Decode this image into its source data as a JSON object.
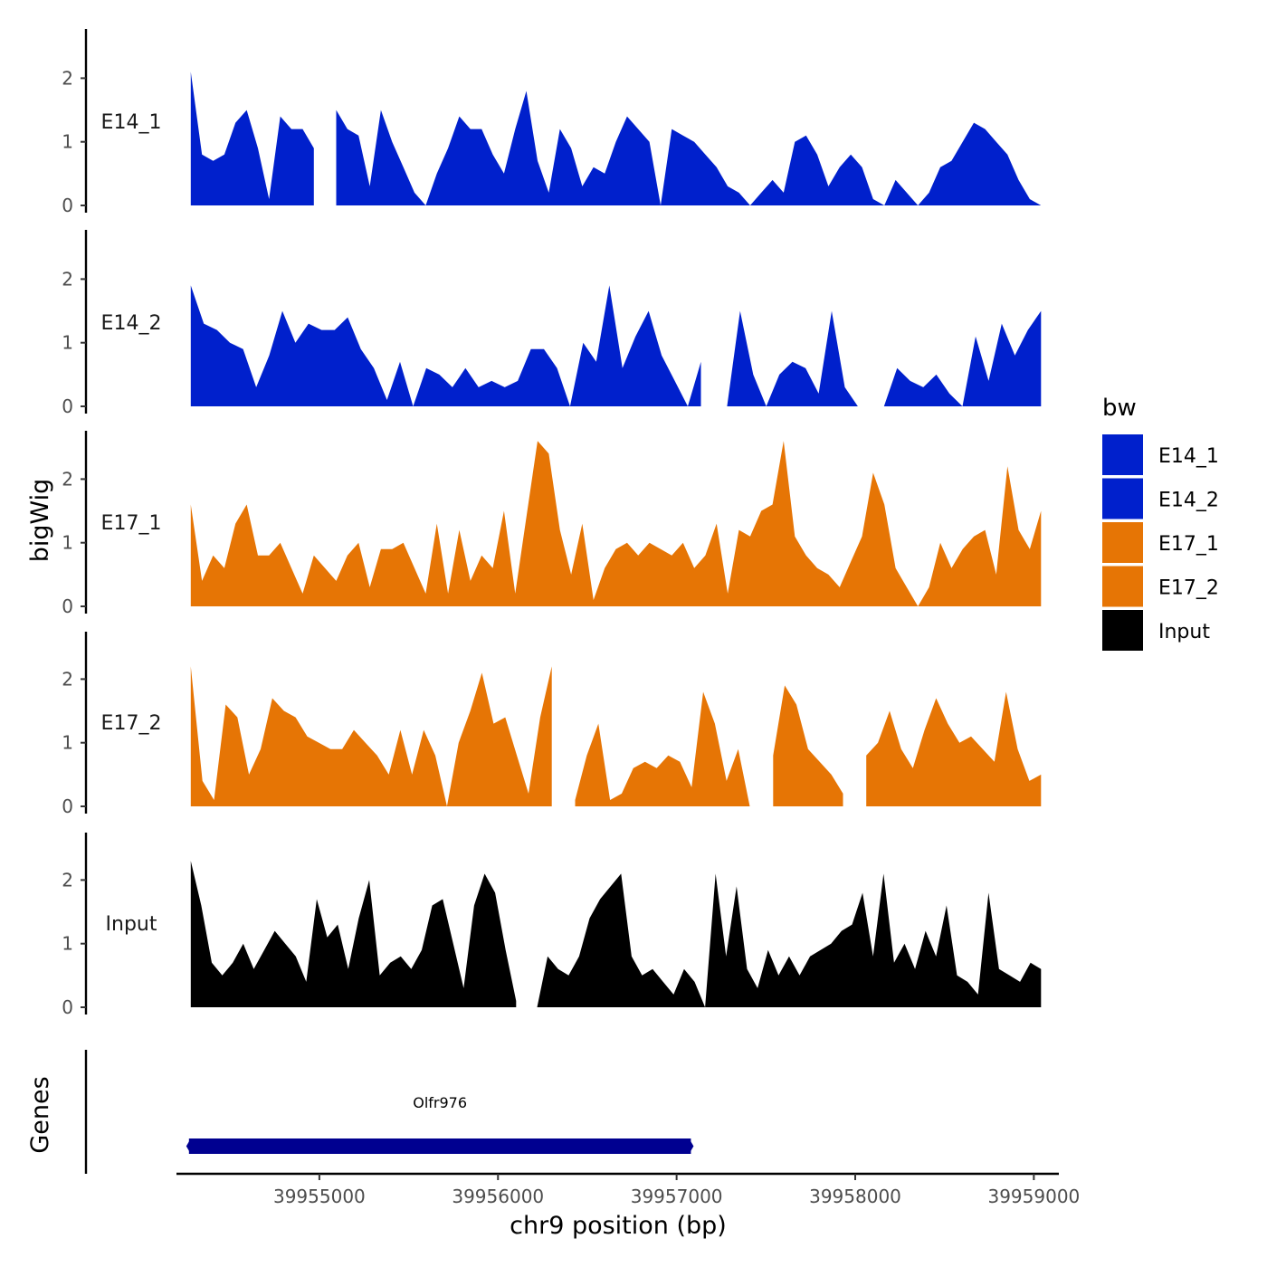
{
  "chart_data": {
    "type": "area",
    "title": "",
    "xlabel": "chr9 position (bp)",
    "ylabel": "bigWig",
    "genes_label": "Genes",
    "xlim": [
      39954200,
      39959140
    ],
    "ylim": [
      0,
      2.8
    ],
    "x_ticks": [
      39955000,
      39956000,
      39957000,
      39958000,
      39959000
    ],
    "x_tick_labels": [
      "39955000",
      "39956000",
      "39957000",
      "39958000",
      "39959000"
    ],
    "y_ticks": [
      0,
      1,
      2
    ],
    "y_tick_labels": [
      "0",
      "1",
      "2"
    ],
    "grid": false,
    "legend": {
      "title": "bw",
      "placement": "right",
      "entries": [
        {
          "name": "E14_1",
          "color": "#0020CC"
        },
        {
          "name": "E14_2",
          "color": "#0020CC"
        },
        {
          "name": "E17_1",
          "color": "#E67505"
        },
        {
          "name": "E17_2",
          "color": "#E67505"
        },
        {
          "name": "Input",
          "color": "#000000"
        }
      ]
    },
    "series": [
      {
        "name": "E14_1",
        "color": "#0020CC",
        "x_start": 39954280,
        "x_end": 39959040,
        "values": [
          2.1,
          0.8,
          0.7,
          0.8,
          1.3,
          1.5,
          0.9,
          0.1,
          1.4,
          1.2,
          1.2,
          0.9,
          null,
          1.5,
          1.2,
          1.1,
          0.3,
          1.5,
          1.0,
          0.6,
          0.2,
          0.0,
          0.5,
          0.9,
          1.4,
          1.2,
          1.2,
          0.8,
          0.5,
          1.2,
          1.8,
          0.7,
          0.2,
          1.2,
          0.9,
          0.3,
          0.6,
          0.5,
          1.0,
          1.4,
          1.2,
          1.0,
          0.0,
          1.2,
          1.1,
          1.0,
          0.8,
          0.6,
          0.3,
          0.2,
          0.0,
          0.2,
          0.4,
          0.2,
          1.0,
          1.1,
          0.8,
          0.3,
          0.6,
          0.8,
          0.6,
          0.1,
          0.0,
          0.4,
          0.2,
          0.0,
          0.2,
          0.6,
          0.7,
          1.0,
          1.3,
          1.2,
          1.0,
          0.8,
          0.4,
          0.1,
          0.0
        ]
      },
      {
        "name": "E14_2",
        "color": "#0020CC",
        "x_start": 39954280,
        "x_end": 39959040,
        "values": [
          1.9,
          1.3,
          1.2,
          1.0,
          0.9,
          0.3,
          0.8,
          1.5,
          1.0,
          1.3,
          1.2,
          1.2,
          1.4,
          0.9,
          0.6,
          0.1,
          0.7,
          0.0,
          0.6,
          0.5,
          0.3,
          0.6,
          0.3,
          0.4,
          0.3,
          0.4,
          0.9,
          0.9,
          0.6,
          0.0,
          1.0,
          0.7,
          1.9,
          0.6,
          1.1,
          1.5,
          0.8,
          0.4,
          0.0,
          0.7,
          null,
          0.0,
          1.5,
          0.5,
          0.0,
          0.5,
          0.7,
          0.6,
          0.2,
          1.5,
          0.3,
          0.0,
          null,
          0.0,
          0.6,
          0.4,
          0.3,
          0.5,
          0.2,
          0.0,
          1.1,
          0.4,
          1.3,
          0.8,
          1.2,
          1.5
        ]
      },
      {
        "name": "E17_1",
        "color": "#E67505",
        "x_start": 39954280,
        "x_end": 39959040,
        "values": [
          1.6,
          0.4,
          0.8,
          0.6,
          1.3,
          1.6,
          0.8,
          0.8,
          1.0,
          0.6,
          0.2,
          0.8,
          0.6,
          0.4,
          0.8,
          1.0,
          0.3,
          0.9,
          0.9,
          1.0,
          0.6,
          0.2,
          1.3,
          0.2,
          1.2,
          0.4,
          0.8,
          0.6,
          1.5,
          0.2,
          1.4,
          2.6,
          2.4,
          1.2,
          0.5,
          1.3,
          0.1,
          0.6,
          0.9,
          1.0,
          0.8,
          1.0,
          0.9,
          0.8,
          1.0,
          0.6,
          0.8,
          1.3,
          0.2,
          1.2,
          1.1,
          1.5,
          1.6,
          2.6,
          1.1,
          0.8,
          0.6,
          0.5,
          0.3,
          0.7,
          1.1,
          2.1,
          1.6,
          0.6,
          0.3,
          0.0,
          0.3,
          1.0,
          0.6,
          0.9,
          1.1,
          1.2,
          0.5,
          2.2,
          1.2,
          0.9,
          1.5
        ]
      },
      {
        "name": "E17_2",
        "color": "#E67505",
        "x_start": 39954280,
        "x_end": 39959040,
        "values": [
          2.2,
          0.4,
          0.1,
          1.6,
          1.4,
          0.5,
          0.9,
          1.7,
          1.5,
          1.4,
          1.1,
          1.0,
          0.9,
          0.9,
          1.2,
          1.0,
          0.8,
          0.5,
          1.2,
          0.5,
          1.2,
          0.8,
          0.0,
          1.0,
          1.5,
          2.1,
          1.3,
          1.4,
          0.8,
          0.2,
          1.4,
          2.2,
          null,
          0.1,
          0.8,
          1.3,
          0.1,
          0.2,
          0.6,
          0.7,
          0.6,
          0.8,
          0.7,
          0.3,
          1.8,
          1.3,
          0.4,
          0.9,
          0.0,
          null,
          0.8,
          1.9,
          1.6,
          0.9,
          0.7,
          0.5,
          0.2,
          null,
          0.8,
          1.0,
          1.5,
          0.9,
          0.6,
          1.2,
          1.7,
          1.3,
          1.0,
          1.1,
          0.9,
          0.7,
          1.8,
          0.9,
          0.4,
          0.5
        ]
      },
      {
        "name": "Input",
        "color": "#000000",
        "x_start": 39954280,
        "x_end": 39959040,
        "values": [
          2.3,
          1.6,
          0.7,
          0.5,
          0.7,
          1.0,
          0.6,
          0.9,
          1.2,
          1.0,
          0.8,
          0.4,
          1.7,
          1.1,
          1.3,
          0.6,
          1.4,
          2.0,
          0.5,
          0.7,
          0.8,
          0.6,
          0.9,
          1.6,
          1.7,
          1.0,
          0.3,
          1.6,
          2.1,
          1.8,
          0.9,
          0.1,
          null,
          0.0,
          0.8,
          0.6,
          0.5,
          0.8,
          1.4,
          1.7,
          1.9,
          2.1,
          0.8,
          0.5,
          0.6,
          0.4,
          0.2,
          0.6,
          0.4,
          0.0,
          2.1,
          0.8,
          1.9,
          0.6,
          0.3,
          0.9,
          0.5,
          0.8,
          0.5,
          0.8,
          0.9,
          1.0,
          1.2,
          1.3,
          1.8,
          0.8,
          2.1,
          0.7,
          1.0,
          0.6,
          1.2,
          0.8,
          1.6,
          0.5,
          0.4,
          0.2,
          1.8,
          0.6,
          0.5,
          0.4,
          0.7,
          0.6
        ]
      }
    ],
    "genes": [
      {
        "name": "Olfr976",
        "start": 39954270,
        "end": 39957080,
        "color": "#000090"
      }
    ]
  }
}
